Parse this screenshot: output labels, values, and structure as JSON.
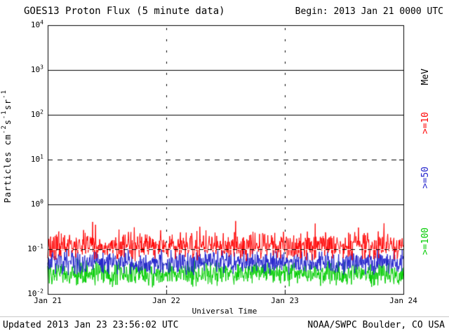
{
  "header": {
    "title": "GOES13 Proton Flux (5 minute data)",
    "begin_label": "Begin: 2013 Jan 21 0000 UTC"
  },
  "footer": {
    "updated": "Updated 2013 Jan 23 23:56:02 UTC",
    "source": "NOAA/SWPC Boulder, CO USA"
  },
  "chart_data": {
    "type": "line",
    "title": "GOES13 Proton Flux (5 minute data)",
    "xlabel": "Universal Time",
    "ylabel": "Particles cm-2 s-1 sr-1",
    "ylabel_parts": [
      {
        "t": "Particles  cm"
      },
      {
        "sup": "-2"
      },
      {
        "t": "s"
      },
      {
        "sup": "-1"
      },
      {
        "t": "sr"
      },
      {
        "sup": "-1"
      }
    ],
    "x_tick_labels": [
      "Jan 21",
      "Jan 22",
      "Jan 23",
      "Jan 24"
    ],
    "y_tick_exponents": [
      4,
      3,
      2,
      1,
      0,
      -1,
      -2
    ],
    "ylim_log10": [
      -2,
      4
    ],
    "x_days": 3,
    "points_per_day": 288,
    "grid": "horizontal-decade-lines",
    "gridlines": [
      {
        "log10": 3,
        "style": "solid"
      },
      {
        "log10": 2,
        "style": "solid"
      },
      {
        "log10": 1,
        "style": "dashed"
      },
      {
        "log10": 0,
        "style": "solid"
      },
      {
        "log10": -1,
        "style": "dashed-overlay"
      }
    ],
    "day_boundary_vertical_dashes": true,
    "right_axis_unit": "MeV",
    "legend_position": "right-rotated",
    "right_labels": [
      {
        "label": "MeV",
        "color": "#000000"
      },
      {
        "label": ">=10",
        "color": "#ff0000"
      },
      {
        "label": ">=50",
        "color": "#2222cc"
      },
      {
        "label": ">=100",
        "color": "#00cc00"
      }
    ],
    "series": [
      {
        "name": ">=10 MeV",
        "color": "#ff0000",
        "typical_flux": 0.12,
        "approx_range": [
          0.06,
          0.45
        ],
        "log10_base": -0.92,
        "log10_spread": 0.36,
        "spike_prob": 0.05,
        "spike_amp": 0.4,
        "seed": 1013
      },
      {
        "name": ">=50 MeV",
        "color": "#2222cc",
        "typical_flux": 0.05,
        "approx_range": [
          0.025,
          0.12
        ],
        "log10_base": -1.3,
        "log10_spread": 0.3,
        "spike_prob": 0.03,
        "spike_amp": 0.2,
        "seed": 2050
      },
      {
        "name": ">=100 MeV",
        "color": "#00cc00",
        "typical_flux": 0.03,
        "approx_range": [
          0.013,
          0.07
        ],
        "log10_base": -1.54,
        "log10_spread": 0.32,
        "spike_prob": 0.03,
        "spike_amp": 0.18,
        "seed": 3100
      }
    ]
  }
}
